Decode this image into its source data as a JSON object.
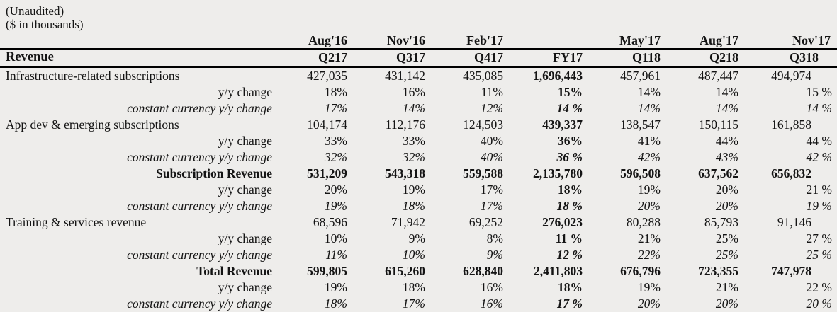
{
  "meta": {
    "note1": "(Unaudited)",
    "note2": "($ in thousands)"
  },
  "table": {
    "section": "Revenue",
    "months": [
      "Aug'16",
      "Nov'16",
      "Feb'17",
      "",
      "May'17",
      "Aug'17",
      "Nov'17"
    ],
    "quarters": [
      "Q217",
      "Q317",
      "Q417",
      "FY17",
      "Q118",
      "Q218",
      "Q318"
    ],
    "rows": [
      {
        "type": "item",
        "label": "Infrastructure-related subscriptions",
        "values": [
          "427,035",
          "431,142",
          "435,085",
          "1,696,443",
          "457,961",
          "487,447",
          "494,974"
        ]
      },
      {
        "type": "yoy",
        "label": "y/y change",
        "values": [
          "18%",
          "16%",
          "11%",
          "15%",
          "14%",
          "14%",
          "15 %"
        ]
      },
      {
        "type": "cc",
        "label": "constant currency y/y change",
        "values": [
          "17%",
          "14%",
          "12%",
          "14 %",
          "14%",
          "14%",
          "14 %"
        ]
      },
      {
        "type": "item",
        "label": "App dev & emerging subscriptions",
        "values": [
          "104,174",
          "112,176",
          "124,503",
          "439,337",
          "138,547",
          "150,115",
          "161,858"
        ]
      },
      {
        "type": "yoy",
        "label": "y/y change",
        "values": [
          "33%",
          "33%",
          "40%",
          "36%",
          "41%",
          "44%",
          "44 %"
        ]
      },
      {
        "type": "cc",
        "label": "constant currency y/y change",
        "values": [
          "32%",
          "32%",
          "40%",
          "36 %",
          "42%",
          "43%",
          "42 %"
        ]
      },
      {
        "type": "total",
        "label": "Subscription Revenue",
        "values": [
          "531,209",
          "543,318",
          "559,588",
          "2,135,780",
          "596,508",
          "637,562",
          "656,832"
        ]
      },
      {
        "type": "yoy",
        "label": "y/y change",
        "values": [
          "20%",
          "19%",
          "17%",
          "18%",
          "19%",
          "20%",
          "21 %"
        ]
      },
      {
        "type": "cc",
        "label": "constant currency y/y change",
        "values": [
          "19%",
          "18%",
          "17%",
          "18 %",
          "20%",
          "20%",
          "19 %"
        ]
      },
      {
        "type": "item",
        "label": "Training & services revenue",
        "values": [
          "68,596",
          "71,942",
          "69,252",
          "276,023",
          "80,288",
          "85,793",
          "91,146"
        ]
      },
      {
        "type": "yoy",
        "label": "y/y change",
        "values": [
          "10%",
          "9%",
          "8%",
          "11 %",
          "21%",
          "25%",
          "27 %"
        ]
      },
      {
        "type": "cc",
        "label": "constant currency y/y change",
        "values": [
          "11%",
          "10%",
          "9%",
          "12 %",
          "22%",
          "25%",
          "25 %"
        ]
      },
      {
        "type": "total",
        "label": "Total Revenue",
        "values": [
          "599,805",
          "615,260",
          "628,840",
          "2,411,803",
          "676,796",
          "723,355",
          "747,978"
        ]
      },
      {
        "type": "yoy",
        "label": "y/y change",
        "values": [
          "19%",
          "18%",
          "16%",
          "18%",
          "19%",
          "21%",
          "22 %"
        ]
      },
      {
        "type": "cc",
        "label": "constant currency y/y change",
        "values": [
          "18%",
          "17%",
          "16%",
          "17 %",
          "20%",
          "20%",
          "20 %"
        ]
      }
    ]
  }
}
